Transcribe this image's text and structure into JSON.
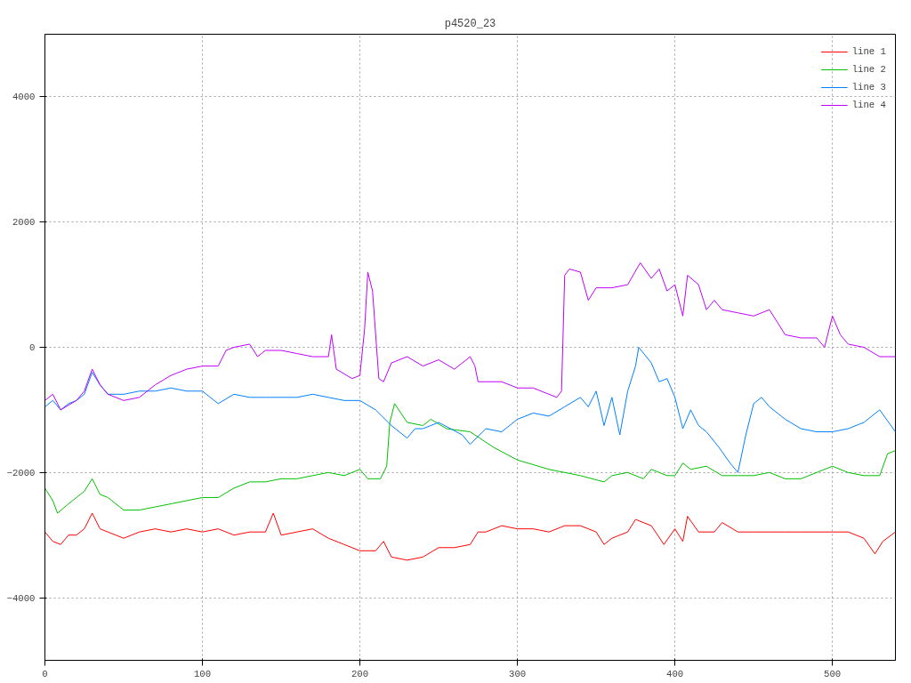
{
  "chart_data": {
    "type": "line",
    "title": "p4520_23",
    "xlim": [
      0,
      540
    ],
    "ylim": [
      -5000,
      5000
    ],
    "xticks": [
      0,
      100,
      200,
      300,
      400,
      500
    ],
    "yticks": [
      -4000,
      -2000,
      0,
      2000,
      4000
    ],
    "grid": true,
    "legend": "top right",
    "line_style": "solid",
    "marker": "none",
    "series": [
      {
        "name": "line 1",
        "color": "#ff0000",
        "x": [
          0,
          5,
          10,
          15,
          20,
          25,
          30,
          35,
          40,
          45,
          50,
          55,
          60,
          70,
          80,
          90,
          100,
          110,
          120,
          130,
          140,
          145,
          150,
          160,
          170,
          180,
          190,
          200,
          210,
          215,
          220,
          230,
          240,
          250,
          260,
          270,
          275,
          280,
          290,
          300,
          310,
          320,
          330,
          340,
          350,
          355,
          360,
          370,
          375,
          385,
          393,
          400,
          405,
          408,
          415,
          425,
          430,
          440,
          450,
          460,
          470,
          480,
          490,
          500,
          510,
          520,
          527,
          532,
          540
        ],
        "values": [
          -2950,
          -3100,
          -3150,
          -3000,
          -3000,
          -2900,
          -2650,
          -2900,
          -2950,
          -3000,
          -3050,
          -3000,
          -2950,
          -2900,
          -2950,
          -2900,
          -2950,
          -2900,
          -3000,
          -2950,
          -2950,
          -2650,
          -3000,
          -2950,
          -2900,
          -3050,
          -3150,
          -3250,
          -3250,
          -3100,
          -3350,
          -3400,
          -3350,
          -3200,
          -3200,
          -3150,
          -2950,
          -2950,
          -2850,
          -2900,
          -2900,
          -2950,
          -2850,
          -2850,
          -2950,
          -3150,
          -3050,
          -2950,
          -2750,
          -2850,
          -3150,
          -2900,
          -3100,
          -2700,
          -2950,
          -2950,
          -2800,
          -2950,
          -2950,
          -2950,
          -2950,
          -2950,
          -2950,
          -2950,
          -2950,
          -3050,
          -3300,
          -3100,
          -2950
        ]
      },
      {
        "name": "line 2",
        "color": "#00c000",
        "x": [
          0,
          5,
          8,
          15,
          20,
          25,
          30,
          35,
          40,
          50,
          60,
          70,
          80,
          90,
          100,
          110,
          120,
          130,
          140,
          150,
          160,
          170,
          180,
          190,
          200,
          205,
          213,
          217,
          219,
          222,
          230,
          240,
          245,
          255,
          270,
          285,
          300,
          320,
          340,
          355,
          360,
          370,
          380,
          385,
          395,
          400,
          405,
          410,
          420,
          430,
          440,
          450,
          460,
          470,
          480,
          490,
          500,
          510,
          520,
          530,
          535,
          540
        ],
        "values": [
          -2250,
          -2450,
          -2650,
          -2500,
          -2400,
          -2300,
          -2100,
          -2350,
          -2400,
          -2600,
          -2600,
          -2550,
          -2500,
          -2450,
          -2400,
          -2400,
          -2250,
          -2150,
          -2150,
          -2100,
          -2100,
          -2050,
          -2000,
          -2050,
          -1950,
          -2100,
          -2100,
          -1900,
          -1200,
          -900,
          -1200,
          -1250,
          -1150,
          -1300,
          -1350,
          -1600,
          -1800,
          -1950,
          -2050,
          -2150,
          -2050,
          -2000,
          -2100,
          -1950,
          -2050,
          -2050,
          -1850,
          -1950,
          -1900,
          -2050,
          -2050,
          -2050,
          -2000,
          -2100,
          -2100,
          -2000,
          -1900,
          -2000,
          -2050,
          -2050,
          -1700,
          -1650
        ]
      },
      {
        "name": "line 3",
        "color": "#0080ff",
        "x": [
          0,
          5,
          10,
          15,
          20,
          25,
          30,
          35,
          40,
          50,
          60,
          70,
          80,
          90,
          100,
          110,
          120,
          130,
          140,
          150,
          160,
          170,
          180,
          190,
          200,
          210,
          220,
          230,
          235,
          240,
          250,
          265,
          270,
          280,
          290,
          300,
          310,
          320,
          330,
          340,
          345,
          350,
          355,
          360,
          365,
          370,
          375,
          377,
          385,
          390,
          395,
          400,
          405,
          410,
          415,
          420,
          428,
          435,
          440,
          445,
          450,
          455,
          460,
          470,
          480,
          490,
          500,
          510,
          520,
          530,
          540
        ],
        "values": [
          -950,
          -850,
          -1000,
          -900,
          -850,
          -750,
          -400,
          -600,
          -750,
          -750,
          -700,
          -700,
          -650,
          -700,
          -700,
          -900,
          -750,
          -800,
          -800,
          -800,
          -800,
          -750,
          -800,
          -850,
          -850,
          -1000,
          -1250,
          -1450,
          -1300,
          -1300,
          -1200,
          -1400,
          -1550,
          -1300,
          -1350,
          -1150,
          -1050,
          -1100,
          -950,
          -800,
          -950,
          -700,
          -1250,
          -800,
          -1400,
          -700,
          -300,
          0,
          -250,
          -550,
          -500,
          -800,
          -1300,
          -1000,
          -1250,
          -1350,
          -1600,
          -1850,
          -2000,
          -1400,
          -900,
          -800,
          -950,
          -1150,
          -1300,
          -1350,
          -1350,
          -1300,
          -1200,
          -1000,
          -1350
        ]
      },
      {
        "name": "line 4",
        "color": "#c000ff",
        "x": [
          0,
          5,
          10,
          20,
          25,
          30,
          35,
          40,
          50,
          60,
          70,
          80,
          90,
          100,
          110,
          115,
          120,
          130,
          135,
          140,
          150,
          160,
          170,
          180,
          182,
          185,
          195,
          200,
          203,
          205,
          208,
          212,
          215,
          220,
          230,
          240,
          250,
          260,
          270,
          273,
          275,
          290,
          300,
          310,
          320,
          325,
          328,
          330,
          333,
          340,
          345,
          350,
          360,
          370,
          378,
          385,
          390,
          395,
          400,
          405,
          408,
          415,
          420,
          425,
          430,
          440,
          450,
          460,
          465,
          470,
          480,
          490,
          495,
          500,
          505,
          510,
          520,
          530,
          540
        ],
        "values": [
          -850,
          -750,
          -1000,
          -850,
          -700,
          -350,
          -600,
          -750,
          -850,
          -800,
          -600,
          -450,
          -350,
          -300,
          -300,
          -50,
          0,
          50,
          -150,
          -50,
          -50,
          -100,
          -150,
          -150,
          200,
          -350,
          -500,
          -450,
          300,
          1200,
          900,
          -500,
          -550,
          -250,
          -150,
          -300,
          -200,
          -350,
          -150,
          -300,
          -550,
          -550,
          -650,
          -650,
          -750,
          -800,
          -700,
          1150,
          1250,
          1200,
          750,
          950,
          950,
          1000,
          1350,
          1100,
          1250,
          900,
          1000,
          500,
          1150,
          1000,
          600,
          750,
          600,
          550,
          500,
          600,
          400,
          200,
          150,
          150,
          0,
          500,
          200,
          50,
          0,
          -150,
          -150
        ]
      }
    ]
  }
}
